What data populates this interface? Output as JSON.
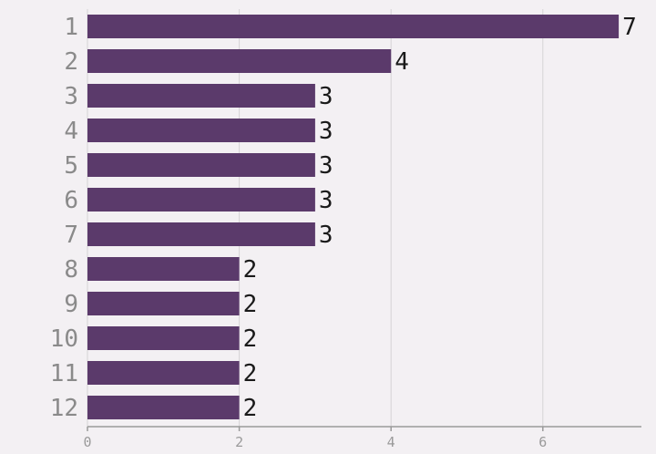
{
  "chart_data": {
    "type": "bar",
    "orientation": "horizontal",
    "categories": [
      "1",
      "2",
      "3",
      "4",
      "5",
      "6",
      "7",
      "8",
      "9",
      "10",
      "11",
      "12"
    ],
    "values": [
      7,
      4,
      3,
      3,
      3,
      3,
      3,
      2,
      2,
      2,
      2,
      2
    ],
    "xlim": [
      0,
      7.3
    ],
    "xticks": [
      0,
      2,
      4,
      6
    ],
    "grid": "vertical",
    "bar_color": "#5b3a6b",
    "background_color": "#f3f0f3"
  }
}
